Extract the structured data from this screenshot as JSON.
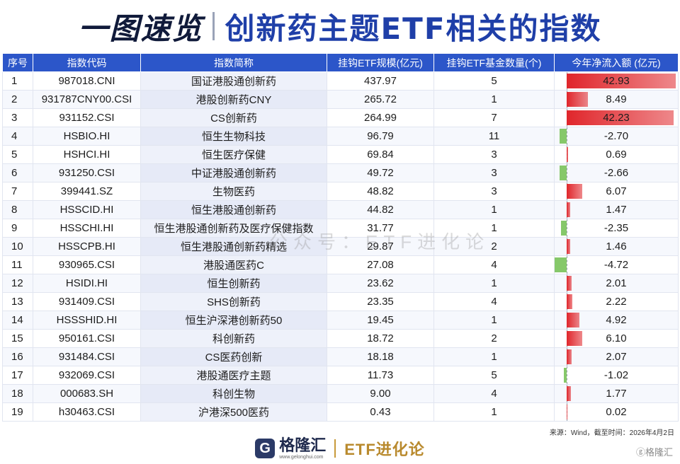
{
  "title": {
    "left": "一图速览",
    "right": "创新药主题ETF相关的指数"
  },
  "table": {
    "headers": [
      "序号",
      "指数代码",
      "指数简称",
      "挂钩ETF规模(亿元)",
      "挂钩ETF基金数量(个)",
      "今年净流入额 (亿元)"
    ],
    "rows": [
      {
        "idx": "1",
        "code": "987018.CNI",
        "name": "国证港股通创新药",
        "scale": "437.97",
        "count": "5",
        "flow": "42.93"
      },
      {
        "idx": "2",
        "code": "931787CNY00.CSI",
        "name": "港股创新药CNY",
        "scale": "265.72",
        "count": "1",
        "flow": "8.49"
      },
      {
        "idx": "3",
        "code": "931152.CSI",
        "name": "CS创新药",
        "scale": "264.99",
        "count": "7",
        "flow": "42.23"
      },
      {
        "idx": "4",
        "code": "HSBIO.HI",
        "name": "恒生生物科技",
        "scale": "96.79",
        "count": "11",
        "flow": "-2.70"
      },
      {
        "idx": "5",
        "code": "HSHCI.HI",
        "name": "恒生医疗保健",
        "scale": "69.84",
        "count": "3",
        "flow": "0.69"
      },
      {
        "idx": "6",
        "code": "931250.CSI",
        "name": "中证港股通创新药",
        "scale": "49.72",
        "count": "3",
        "flow": "-2.66"
      },
      {
        "idx": "7",
        "code": "399441.SZ",
        "name": "生物医药",
        "scale": "48.82",
        "count": "3",
        "flow": "6.07"
      },
      {
        "idx": "8",
        "code": "HSSCID.HI",
        "name": "恒生港股通创新药",
        "scale": "44.82",
        "count": "1",
        "flow": "1.47"
      },
      {
        "idx": "9",
        "code": "HSSCHI.HI",
        "name": "恒生港股通创新药及医疗保健指数",
        "scale": "31.77",
        "count": "1",
        "flow": "-2.35"
      },
      {
        "idx": "10",
        "code": "HSSCPB.HI",
        "name": "恒生港股通创新药精选",
        "scale": "29.87",
        "count": "2",
        "flow": "1.46"
      },
      {
        "idx": "11",
        "code": "930965.CSI",
        "name": "港股通医药C",
        "scale": "27.08",
        "count": "4",
        "flow": "-4.72"
      },
      {
        "idx": "12",
        "code": "HSIDI.HI",
        "name": "恒生创新药",
        "scale": "23.62",
        "count": "1",
        "flow": "2.01"
      },
      {
        "idx": "13",
        "code": "931409.CSI",
        "name": "SHS创新药",
        "scale": "23.35",
        "count": "4",
        "flow": "2.22"
      },
      {
        "idx": "14",
        "code": "HSSSHID.HI",
        "name": "恒生沪深港创新药50",
        "scale": "19.45",
        "count": "1",
        "flow": "4.92"
      },
      {
        "idx": "15",
        "code": "950161.CSI",
        "name": "科创新药",
        "scale": "18.72",
        "count": "2",
        "flow": "6.10"
      },
      {
        "idx": "16",
        "code": "931484.CSI",
        "name": "CS医药创新",
        "scale": "18.18",
        "count": "1",
        "flow": "2.07"
      },
      {
        "idx": "17",
        "code": "932069.CSI",
        "name": "港股通医疗主题",
        "scale": "11.73",
        "count": "5",
        "flow": "-1.02"
      },
      {
        "idx": "18",
        "code": "000683.SH",
        "name": "科创生物",
        "scale": "9.00",
        "count": "4",
        "flow": "1.77"
      },
      {
        "idx": "19",
        "code": "h30463.CSI",
        "name": "沪港深500医药",
        "scale": "0.43",
        "count": "1",
        "flow": "0.02"
      }
    ]
  },
  "colors": {
    "header_bg": "#2c56c9",
    "positive_bar": "#e0262b",
    "negative_bar": "#86c86a"
  },
  "source_note": "来源：Wind，截至时间：2026年4月2日",
  "footer": {
    "logo_glyph": "G",
    "brand": "格隆汇",
    "url": "www.gelonghui.com",
    "subtitle": "ETF进化论"
  },
  "watermark": "公众号：ETF进化论",
  "corner_mark": "ⓖ格隆汇"
}
